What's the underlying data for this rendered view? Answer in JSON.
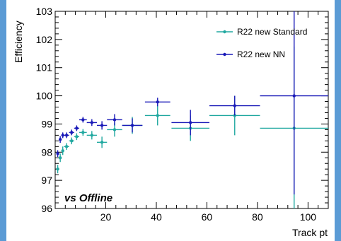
{
  "chart_data": {
    "type": "scatter",
    "xlabel": "Track pt",
    "ylabel": "Efficiency",
    "xlim": [
      0,
      108
    ],
    "ylim": [
      96,
      103
    ],
    "x_ticks": [
      20,
      40,
      60,
      80,
      100
    ],
    "y_ticks": [
      96,
      97,
      98,
      99,
      100,
      101,
      102,
      103
    ],
    "grid": false,
    "legend_position": "top-right",
    "annotation": "vs Offline",
    "series": [
      {
        "name": "R22 new Standard",
        "color": "#20a8a0",
        "points": [
          {
            "x": 1,
            "xerr": 0.5,
            "y": 97.4,
            "yerr": 0.15
          },
          {
            "x": 2,
            "xerr": 0.5,
            "y": 97.8,
            "yerr": 0.15
          },
          {
            "x": 3,
            "xerr": 0.5,
            "y": 98.05,
            "yerr": 0.15
          },
          {
            "x": 4.5,
            "xerr": 1.0,
            "y": 98.2,
            "yerr": 0.12
          },
          {
            "x": 6.5,
            "xerr": 1.0,
            "y": 98.4,
            "yerr": 0.12
          },
          {
            "x": 8.5,
            "xerr": 1.0,
            "y": 98.55,
            "yerr": 0.12
          },
          {
            "x": 11,
            "xerr": 1.5,
            "y": 98.7,
            "yerr": 0.12
          },
          {
            "x": 14.5,
            "xerr": 2.0,
            "y": 98.6,
            "yerr": 0.15
          },
          {
            "x": 18.5,
            "xerr": 2.0,
            "y": 98.35,
            "yerr": 0.2
          },
          {
            "x": 23.5,
            "xerr": 3.0,
            "y": 98.8,
            "yerr": 0.25
          },
          {
            "x": 30.5,
            "xerr": 4.0,
            "y": 98.95,
            "yerr": 0.3
          },
          {
            "x": 40.5,
            "xerr": 5.0,
            "y": 99.3,
            "yerr": 0.35
          },
          {
            "x": 53.5,
            "xerr": 7.5,
            "y": 98.85,
            "yerr": 0.45
          },
          {
            "x": 71,
            "xerr": 10.0,
            "y": 99.3,
            "yerr": 0.7
          },
          {
            "x": 94.5,
            "xerr": 13.5,
            "y": 98.85,
            "yerr": 2.9
          }
        ]
      },
      {
        "name": "R22 new NN",
        "color": "#1a1ab8",
        "points": [
          {
            "x": 1,
            "xerr": 0.5,
            "y": 97.95,
            "yerr": 0.12
          },
          {
            "x": 2,
            "xerr": 0.5,
            "y": 98.45,
            "yerr": 0.12
          },
          {
            "x": 3,
            "xerr": 0.5,
            "y": 98.6,
            "yerr": 0.1
          },
          {
            "x": 4.5,
            "xerr": 1.0,
            "y": 98.6,
            "yerr": 0.1
          },
          {
            "x": 6.5,
            "xerr": 1.0,
            "y": 98.7,
            "yerr": 0.1
          },
          {
            "x": 8.5,
            "xerr": 1.0,
            "y": 98.85,
            "yerr": 0.1
          },
          {
            "x": 11,
            "xerr": 1.5,
            "y": 99.15,
            "yerr": 0.1
          },
          {
            "x": 14.5,
            "xerr": 2.0,
            "y": 99.05,
            "yerr": 0.12
          },
          {
            "x": 18.5,
            "xerr": 2.0,
            "y": 98.95,
            "yerr": 0.15
          },
          {
            "x": 23.5,
            "xerr": 3.0,
            "y": 99.15,
            "yerr": 0.2
          },
          {
            "x": 30.5,
            "xerr": 4.0,
            "y": 98.95,
            "yerr": 0.25
          },
          {
            "x": 40.5,
            "xerr": 5.0,
            "y": 99.78,
            "yerr": 0.15
          },
          {
            "x": 53.5,
            "xerr": 7.5,
            "y": 99.05,
            "yerr": 0.45
          },
          {
            "x": 71,
            "xerr": 10.0,
            "y": 99.65,
            "yerr": 0.35
          },
          {
            "x": 94.5,
            "xerr": 13.5,
            "y": 100.0,
            "yerr": 3.5
          }
        ]
      }
    ]
  }
}
